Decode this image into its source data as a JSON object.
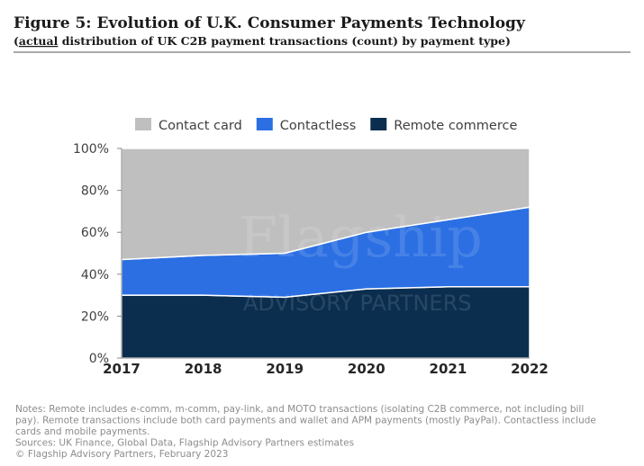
{
  "chart_data": {
    "type": "stacked_area",
    "title": "Figure 5: Evolution of U.K. Consumer Payments Technology",
    "subtitle_parts": [
      "(",
      "actual",
      " distribution of UK C2B payment transactions (count) by payment type)"
    ],
    "watermark": [
      "Flagship",
      "ADVISORY PARTNERS"
    ],
    "categories": [
      "2017",
      "2018",
      "2019",
      "2020",
      "2021",
      "2022"
    ],
    "series": [
      {
        "name": "Remote commerce",
        "color": "#0b2e4f",
        "values": [
          30,
          30,
          29,
          33,
          34,
          34
        ]
      },
      {
        "name": "Contactless",
        "color": "#2b6fe3",
        "values": [
          17,
          19,
          21,
          27,
          32,
          38
        ]
      },
      {
        "name": "Contact card",
        "color": "#bfbfbf",
        "values": [
          53,
          51,
          50,
          40,
          34,
          28
        ]
      }
    ],
    "legend_order": [
      2,
      1,
      0
    ],
    "ylim": [
      0,
      100
    ],
    "yticks": [
      {
        "value": 0,
        "label": "0%"
      },
      {
        "value": 20,
        "label": "20%"
      },
      {
        "value": 40,
        "label": "40%"
      },
      {
        "value": 60,
        "label": "60%"
      },
      {
        "value": 80,
        "label": "80%"
      },
      {
        "value": 100,
        "label": "100%"
      }
    ],
    "notes": [
      "Notes: Remote includes e-comm, m-comm, pay-link, and MOTO transactions (isolating C2B commerce, not including bill",
      "pay). Remote transactions include both card payments and wallet and APM payments (mostly PayPal). Contactless include",
      "cards and mobile payments.",
      "Sources: UK Finance, Global Data, Flagship Advisory Partners estimates",
      "© Flagship Advisory Partners, February 2023"
    ]
  }
}
